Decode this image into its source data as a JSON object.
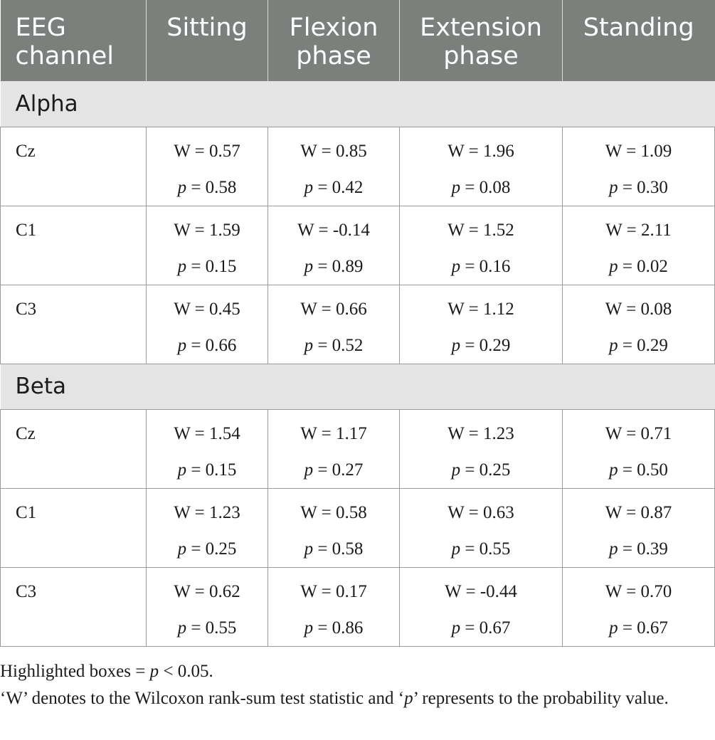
{
  "columns": [
    "EEG channel",
    "Sitting",
    "Flexion phase",
    "Extension phase",
    "Standing"
  ],
  "column_lines": [
    [
      "EEG",
      "channel"
    ],
    [
      "Sitting"
    ],
    [
      "Flexion",
      "phase"
    ],
    [
      "Extension",
      "phase"
    ],
    [
      "Standing"
    ]
  ],
  "p_prefix": "p",
  "sections": [
    {
      "name": "Alpha",
      "rows": [
        {
          "channel": "Cz",
          "cells": [
            {
              "W": "W = 0.57",
              "p": "= 0.58"
            },
            {
              "W": "W = 0.85",
              "p": "= 0.42"
            },
            {
              "W": "W = 1.96",
              "p": "= 0.08"
            },
            {
              "W": "W = 1.09",
              "p": "= 0.30"
            }
          ]
        },
        {
          "channel": "C1",
          "cells": [
            {
              "W": "W = 1.59",
              "p": "= 0.15"
            },
            {
              "W": "W = -0.14",
              "p": "= 0.89"
            },
            {
              "W": "W = 1.52",
              "p": "= 0.16"
            },
            {
              "W": "W = 2.11",
              "p": "= 0.02"
            }
          ]
        },
        {
          "channel": "C3",
          "cells": [
            {
              "W": "W = 0.45",
              "p": "= 0.66"
            },
            {
              "W": "W = 0.66",
              "p": "= 0.52"
            },
            {
              "W": "W = 1.12",
              "p": "= 0.29"
            },
            {
              "W": "W = 0.08",
              "p": "= 0.29"
            }
          ]
        }
      ]
    },
    {
      "name": "Beta",
      "rows": [
        {
          "channel": "Cz",
          "cells": [
            {
              "W": "W = 1.54",
              "p": "= 0.15"
            },
            {
              "W": "W = 1.17",
              "p": "= 0.27"
            },
            {
              "W": "W = 1.23",
              "p": "= 0.25"
            },
            {
              "W": "W = 0.71",
              "p": "= 0.50"
            }
          ]
        },
        {
          "channel": "C1",
          "cells": [
            {
              "W": "W = 1.23",
              "p": "= 0.25"
            },
            {
              "W": "W = 0.58",
              "p": "= 0.58"
            },
            {
              "W": "W = 0.63",
              "p": "= 0.55"
            },
            {
              "W": "W = 0.87",
              "p": "= 0.39"
            }
          ]
        },
        {
          "channel": "C3",
          "cells": [
            {
              "W": "W = 0.62",
              "p": "= 0.55"
            },
            {
              "W": "W = 0.17",
              "p": "= 0.86"
            },
            {
              "W": "W = -0.44",
              "p": "= 0.67"
            },
            {
              "W": "W = 0.70",
              "p": "= 0.67"
            }
          ]
        }
      ]
    }
  ],
  "notes": {
    "line1_prefix": "Highlighted boxes = ",
    "line1_p": "p",
    "line1_suffix": " < 0.05.",
    "line2_prefix": "‘W’ denotes to the Wilcoxon rank-sum test statistic and ‘",
    "line2_p": "p",
    "line2_suffix": "’ represents to the probability value."
  },
  "colors": {
    "header_bg": "#7c807d",
    "section_bg": "#e4e4e4",
    "border": "#9a9a9a"
  }
}
